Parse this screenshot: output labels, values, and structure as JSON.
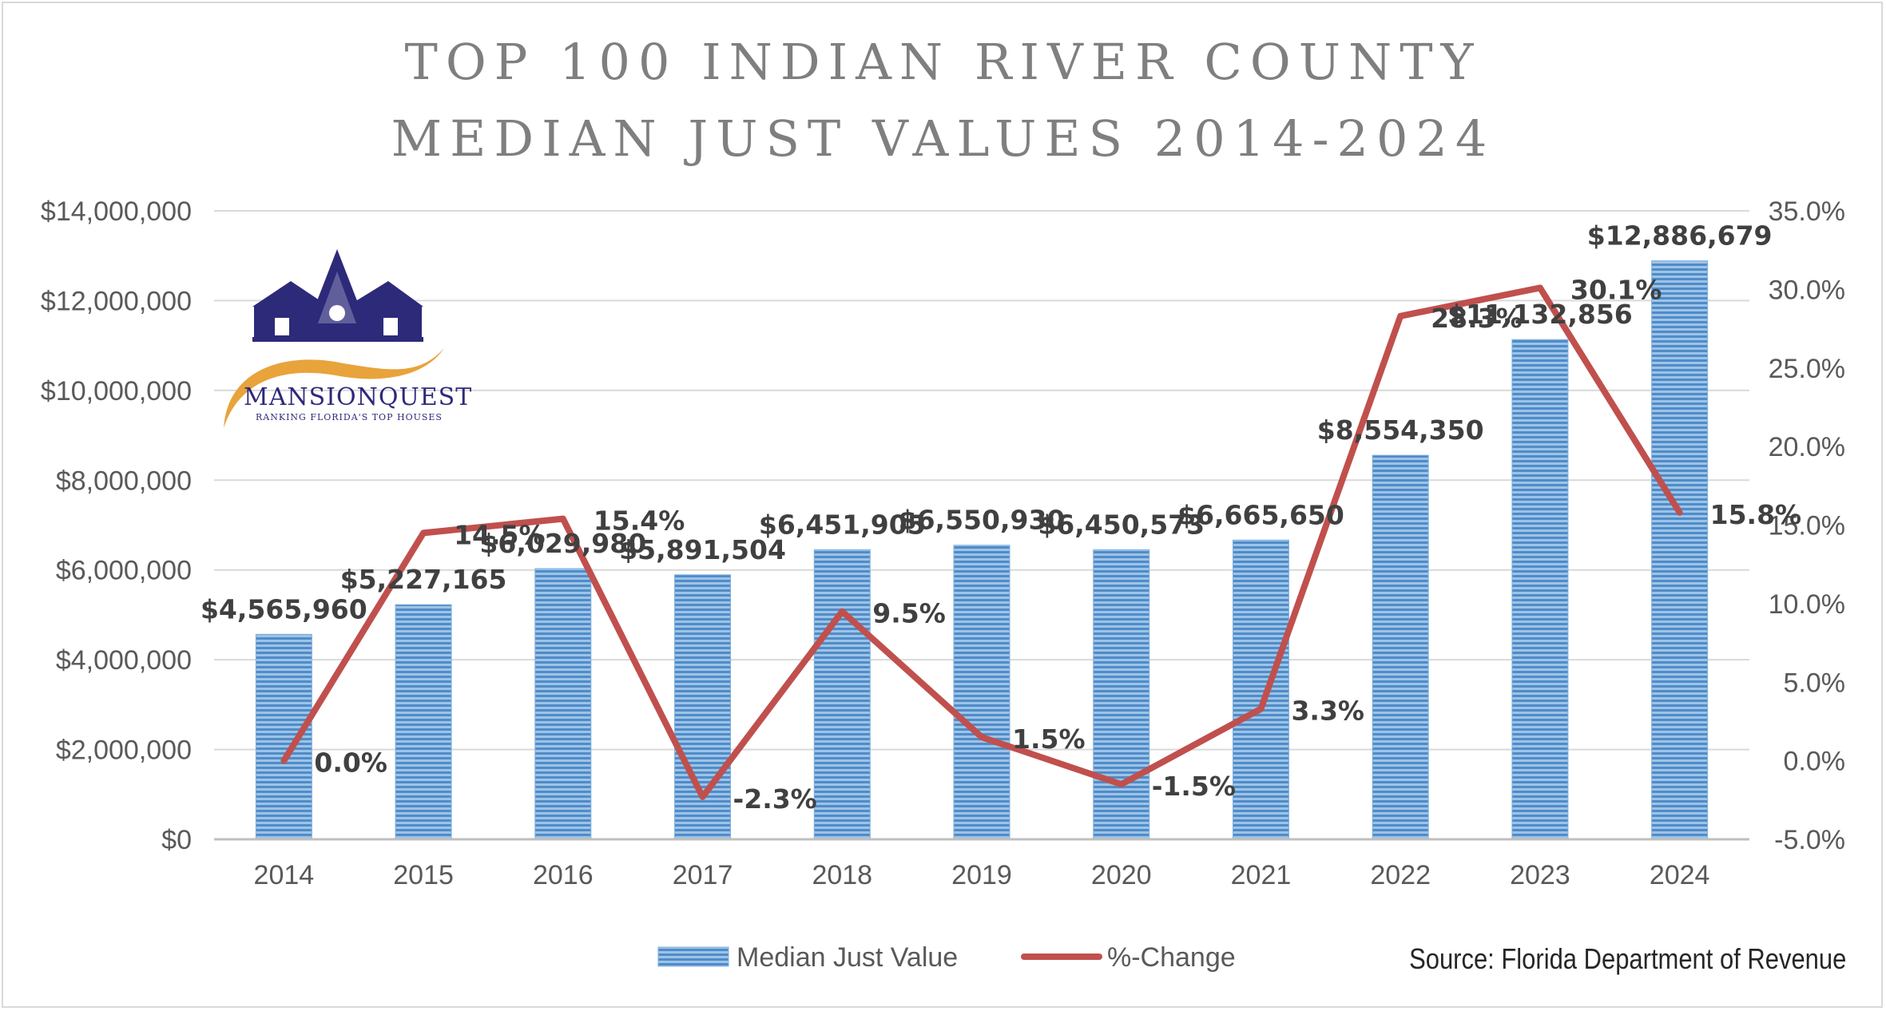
{
  "chart_data": {
    "type": "bar",
    "title_lines": [
      "TOP 100 INDIAN RIVER COUNTY",
      "MEDIAN JUST VALUES 2014-2024"
    ],
    "categories": [
      "2014",
      "2015",
      "2016",
      "2017",
      "2018",
      "2019",
      "2020",
      "2021",
      "2022",
      "2023",
      "2024"
    ],
    "series": [
      {
        "name": "Median Just Value",
        "type": "bar",
        "axis": "left",
        "values": [
          4565960,
          5227165,
          6029980,
          5891504,
          6451905,
          6550930,
          6450573,
          6665650,
          8554350,
          11132856,
          12886679
        ],
        "labels": [
          "$4,565,960",
          "$5,227,165",
          "$6,029,980",
          "$5,891,504",
          "$6,451,905",
          "$6,550,930",
          "$6,450,573",
          "$6,665,650",
          "$8,554,350",
          "$11,132,856",
          "$12,886,679"
        ],
        "color": "#5b9bd5"
      },
      {
        "name": "%-Change",
        "type": "line",
        "axis": "right",
        "values": [
          0.0,
          14.5,
          15.4,
          -2.3,
          9.5,
          1.5,
          -1.5,
          3.3,
          28.3,
          30.1,
          15.8
        ],
        "labels": [
          "0.0%",
          "14.5%",
          "15.4%",
          "-2.3%",
          "9.5%",
          "1.5%",
          "-1.5%",
          "3.3%",
          "28.3%",
          "30.1%",
          "15.8%"
        ],
        "color": "#c0504d"
      }
    ],
    "y_left": {
      "range": [
        0,
        14000000
      ],
      "ticks": [
        "$0",
        "$2,000,000",
        "$4,000,000",
        "$6,000,000",
        "$8,000,000",
        "$10,000,000",
        "$12,000,000",
        "$14,000,000"
      ]
    },
    "y_right": {
      "range": [
        -5,
        35
      ],
      "ticks": [
        "-5.0%",
        "0.0%",
        "5.0%",
        "10.0%",
        "15.0%",
        "20.0%",
        "25.0%",
        "30.0%",
        "35.0%"
      ]
    },
    "grid": true,
    "legend_position": "bottom",
    "source": "Source: Florida Department of Revenue"
  },
  "logo": {
    "name": "MANSIONQUEST",
    "tagline": "RANKING FLORIDA'S TOP HOUSES"
  },
  "colors": {
    "bar": "#5b9bd5",
    "line": "#c0504d",
    "gridline": "#d9d9d9",
    "title": "#7f7f7f",
    "logo_navy": "#2d2a7a",
    "logo_gold": "#e8a33b"
  }
}
